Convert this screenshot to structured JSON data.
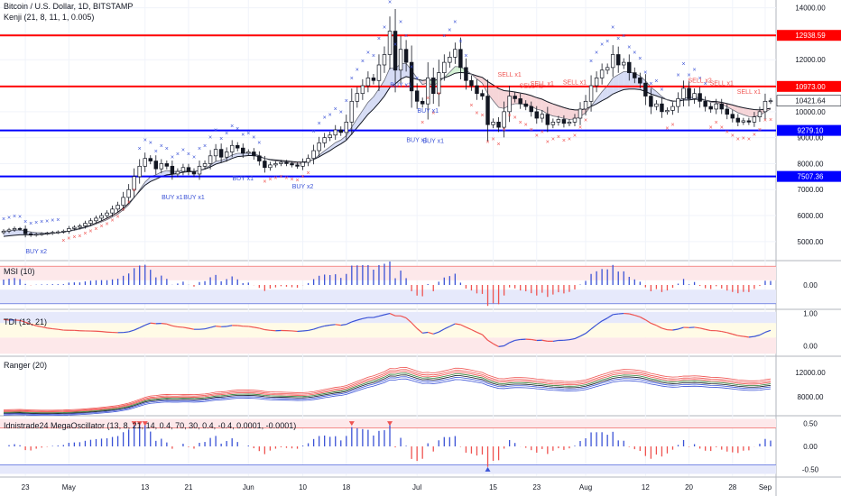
{
  "header": {
    "title": "Bitcoin / U.S. Dollar, 1D, BITSTAMP",
    "indicator": "Kenji (21, 8, 11, 1, 0.005)"
  },
  "panes": {
    "msi": "MSI (10)",
    "tdi": "TDI (13, 21)",
    "ranger": "Ranger (20)",
    "mega": "Idnistrade24 MegaOscillator (13, 8, 21, 14, 0.4, 70, 30, 0.4, -0.4, 0.0001, -0.0001)"
  },
  "colors": {
    "up": "#ffffff",
    "down": "#131722",
    "resistance": "#ff0000",
    "support": "#0000ff",
    "buy": "#3a52d6",
    "sell": "#ef5350",
    "bull_cloud": "#d6dcf5",
    "bear_cloud": "#f6d5d8",
    "green_cloud": "#d5f2d5"
  },
  "chart_data": [
    {
      "type": "candlestick",
      "ylim": [
        4300,
        14300
      ],
      "yticks": [
        5000,
        6000,
        7000,
        8000,
        9000,
        10000,
        11000,
        12000,
        13000,
        14000
      ],
      "ytick_labels": [
        "5000.00",
        "6000.00",
        "7000.00",
        "8000.00",
        "9000.00",
        "10000.00",
        "11000.00",
        "12000.00",
        "13000.00",
        "14000.00"
      ],
      "xtick_labels": [
        {
          "i": 4,
          "label": "23"
        },
        {
          "i": 12,
          "label": "May"
        },
        {
          "i": 26,
          "label": "13"
        },
        {
          "i": 34,
          "label": "21"
        },
        {
          "i": 45,
          "label": "Jun"
        },
        {
          "i": 55,
          "label": "10"
        },
        {
          "i": 63,
          "label": "18"
        },
        {
          "i": 76,
          "label": "Jul"
        },
        {
          "i": 90,
          "label": "15"
        },
        {
          "i": 98,
          "label": "23"
        },
        {
          "i": 107,
          "label": "Aug"
        },
        {
          "i": 118,
          "label": "12"
        },
        {
          "i": 126,
          "label": "20"
        },
        {
          "i": 134,
          "label": "28"
        },
        {
          "i": 140,
          "label": "Sep"
        }
      ],
      "levels": [
        {
          "value": 12938.59,
          "label": "12938.59",
          "color": "#ff0000"
        },
        {
          "value": 10973.0,
          "label": "10973.00",
          "color": "#ff0000"
        },
        {
          "value": 9279.1,
          "label": "9279.10",
          "color": "#0000ff"
        },
        {
          "value": 7507.36,
          "label": "7507.36",
          "color": "#0000ff"
        }
      ],
      "last_price": {
        "value": 10421.64,
        "label": "10421.64"
      },
      "closes": [
        5400,
        5450,
        5500,
        5480,
        5300,
        5250,
        5280,
        5300,
        5320,
        5350,
        5370,
        5400,
        5500,
        5550,
        5600,
        5700,
        5800,
        5900,
        6000,
        6100,
        6250,
        6400,
        6700,
        7000,
        7500,
        7900,
        8200,
        8100,
        7800,
        8000,
        7900,
        7600,
        7700,
        7850,
        7700,
        7600,
        7900,
        8000,
        8300,
        8550,
        8250,
        8450,
        8700,
        8600,
        8400,
        8450,
        8300,
        8100,
        7850,
        7950,
        8000,
        8050,
        8000,
        7950,
        7900,
        8050,
        8200,
        8500,
        8800,
        9000,
        9100,
        9300,
        9200,
        9600,
        10400,
        10700,
        11000,
        11300,
        11200,
        11800,
        12200,
        13100,
        11600,
        12400,
        11900,
        10800,
        10400,
        10300,
        11300,
        10700,
        11500,
        11900,
        12100,
        12400,
        11700,
        11200,
        11000,
        10700,
        10600,
        9500,
        9600,
        9400,
        10000,
        10600,
        10500,
        10300,
        10200,
        10000,
        9750,
        9900,
        9500,
        9600,
        9700,
        9550,
        9600,
        9750,
        10100,
        10400,
        11000,
        11300,
        11600,
        11700,
        12200,
        11800,
        11900,
        11500,
        11300,
        11100,
        10600,
        10200,
        10300,
        10000,
        10050,
        10200,
        10500,
        10900,
        10500,
        10700,
        10400,
        10200,
        10100,
        10300,
        10100,
        9900,
        9750,
        9600,
        9650,
        9600,
        9800,
        10000,
        10400,
        10420
      ],
      "kenji_upper": [
        5200,
        5220,
        5240,
        5260,
        5260,
        5260,
        5270,
        5280,
        5300,
        5320,
        5340,
        5370,
        5410,
        5450,
        5500,
        5560,
        5630,
        5710,
        5800,
        5900,
        6010,
        6130,
        6290,
        6470,
        6700,
        6940,
        7170,
        7310,
        7400,
        7500,
        7570,
        7590,
        7620,
        7670,
        7690,
        7690,
        7740,
        7790,
        7870,
        7980,
        8040,
        8110,
        8200,
        8270,
        8290,
        8310,
        8310,
        8270,
        8200,
        8160,
        8140,
        8120,
        8100,
        8080,
        8060,
        8060,
        8090,
        8160,
        8260,
        8380,
        8500,
        8640,
        8760,
        8900,
        9140,
        9390,
        9640,
        9900,
        10100,
        10340,
        10600,
        10930,
        11070,
        11250,
        11350,
        11300,
        11250,
        11200,
        11230,
        11200,
        11240,
        11300,
        11380,
        11480,
        11510,
        11490,
        11450,
        11380,
        11320,
        11160,
        11030,
        10890,
        10810,
        10790,
        10760,
        10720,
        10680,
        10620,
        10540,
        10480,
        10380,
        10300,
        10230,
        10160,
        10100,
        10070,
        10070,
        10110,
        10200,
        10300,
        10420,
        10530,
        10680,
        10770,
        10850,
        10870,
        10870,
        10850,
        10780,
        10680,
        10610,
        10530,
        10460,
        10410,
        10400,
        10450,
        10450,
        10480,
        10470,
        10440,
        10400,
        10390,
        10360,
        10310,
        10260,
        10200,
        10150,
        10110,
        10080,
        10070,
        10100,
        10130
      ]
    },
    {
      "type": "bar",
      "name": "MSI (10)",
      "ylim": [
        -1,
        1
      ],
      "yticks": [
        0
      ],
      "ytick_labels": [
        "0.00"
      ]
    },
    {
      "type": "line",
      "name": "TDI (13, 21)",
      "ylim": [
        -0.3,
        1.1
      ],
      "yticks": [
        0,
        1
      ],
      "ytick_labels": [
        "0.00",
        "1.00"
      ]
    },
    {
      "type": "line",
      "name": "Ranger (20)",
      "ylim": [
        5000,
        14500
      ],
      "yticks": [
        8000,
        12000
      ],
      "ytick_labels": [
        "8000.00",
        "12000.00"
      ]
    },
    {
      "type": "bar",
      "name": "MegaOscillator",
      "ylim": [
        -0.65,
        0.65
      ],
      "yticks": [
        0.5,
        0,
        -0.5
      ],
      "ytick_labels": [
        "0.50",
        "0.00",
        "-0.50"
      ]
    }
  ],
  "signals": [
    {
      "i": 6,
      "label": "BUY x2",
      "type": "buy"
    },
    {
      "i": 31,
      "label": "BUY x1",
      "type": "buy"
    },
    {
      "i": 35,
      "label": "BUY x1",
      "type": "buy"
    },
    {
      "i": 44,
      "label": "BUY x1",
      "type": "buy"
    },
    {
      "i": 55,
      "label": "BUY x2",
      "type": "buy"
    },
    {
      "i": 73,
      "label": "BUY x1",
      "type": "buy"
    },
    {
      "i": 78,
      "label": "BUY x1",
      "type": "buy"
    },
    {
      "i": 76,
      "label": "BUY x1",
      "type": "buy",
      "row": 2
    },
    {
      "i": 79,
      "label": "BUY x1",
      "type": "buy",
      "row": 3
    },
    {
      "i": 93,
      "label": "SELL x1",
      "type": "sell"
    },
    {
      "i": 97,
      "label": "SELL x1",
      "type": "sell",
      "row": 2
    },
    {
      "i": 99,
      "label": "SELL x1",
      "type": "sell",
      "row": 3
    },
    {
      "i": 105,
      "label": "SELL x1",
      "type": "sell",
      "row": 4
    },
    {
      "i": 128,
      "label": "SELL x2",
      "type": "sell"
    },
    {
      "i": 132,
      "label": "SELL x1",
      "type": "sell",
      "row": 2
    },
    {
      "i": 137,
      "label": "SELL x1",
      "type": "sell",
      "row": 3
    }
  ]
}
